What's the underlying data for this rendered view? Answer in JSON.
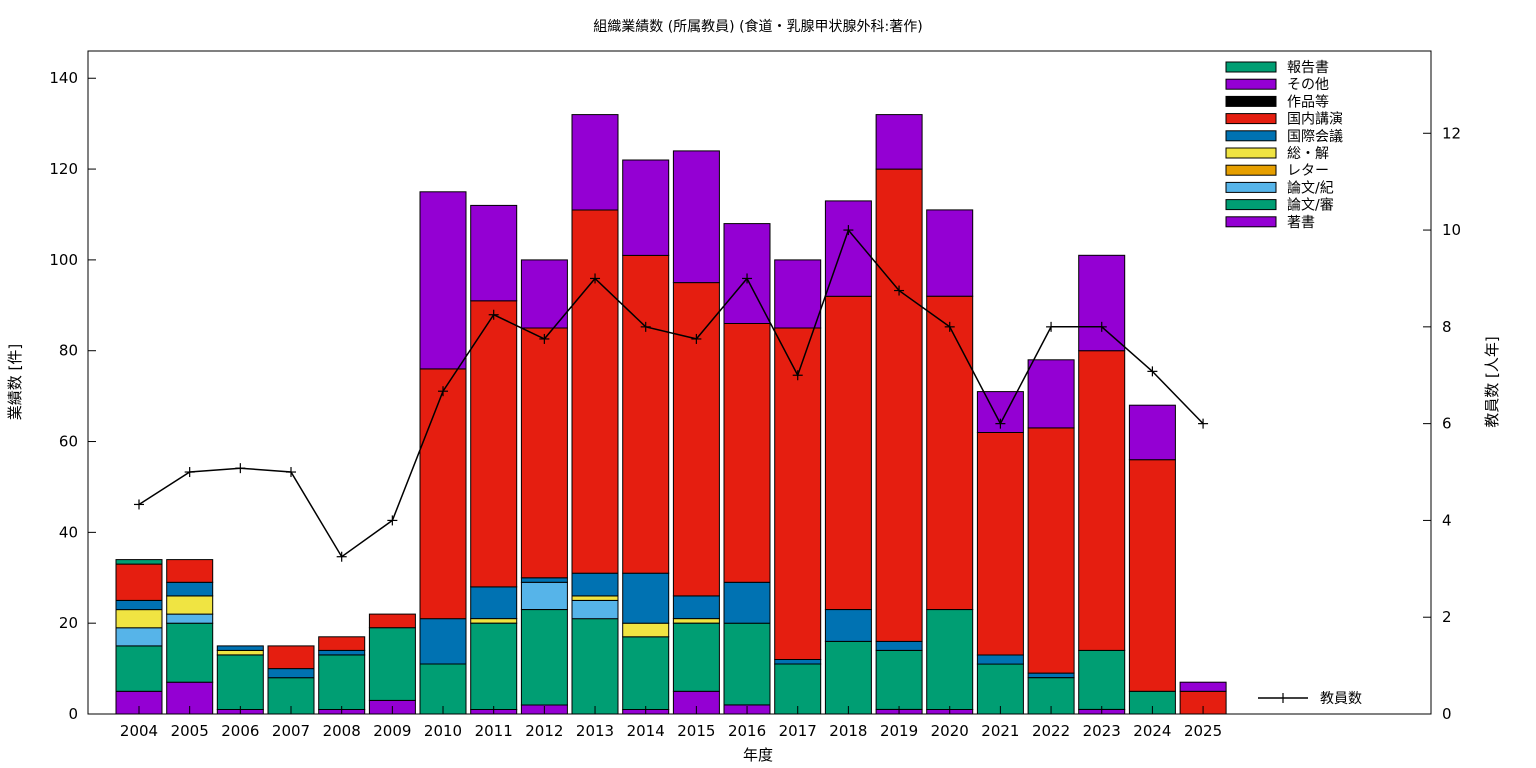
{
  "chart_data": {
    "type": "bar",
    "stacked": true,
    "title": "組織業績数 (所属教員) (食道・乳腺甲状腺外科:著作)",
    "xlabel": "年度",
    "ylabel": "業績数 [件]",
    "y2label": "教員数 [人年]",
    "ylim": [
      0,
      146
    ],
    "y2lim": [
      0,
      13.7
    ],
    "yticks": [
      0,
      20,
      40,
      60,
      80,
      100,
      120,
      140
    ],
    "y2ticks": [
      0,
      2,
      4,
      6,
      8,
      10,
      12
    ],
    "grid": false,
    "legend_position": "top-right",
    "categories": [
      "2004",
      "2005",
      "2006",
      "2007",
      "2008",
      "2009",
      "2010",
      "2011",
      "2012",
      "2013",
      "2014",
      "2015",
      "2016",
      "2017",
      "2018",
      "2019",
      "2020",
      "2021",
      "2022",
      "2023",
      "2024",
      "2025"
    ],
    "series": [
      {
        "name": "著書",
        "color": "#9400d3",
        "values": [
          5,
          7,
          1,
          0,
          1,
          3,
          0,
          1,
          2,
          0,
          1,
          5,
          2,
          0,
          0,
          1,
          1,
          0,
          0,
          1,
          0,
          0
        ]
      },
      {
        "name": "論文/審",
        "color": "#009e73",
        "values": [
          10,
          13,
          12,
          8,
          12,
          16,
          11,
          19,
          21,
          21,
          16,
          15,
          18,
          11,
          16,
          13,
          22,
          11,
          8,
          13,
          5,
          0
        ]
      },
      {
        "name": "論文/紀",
        "color": "#56b4e9",
        "values": [
          4,
          2,
          0,
          0,
          0,
          0,
          0,
          0,
          6,
          4,
          0,
          0,
          0,
          0,
          0,
          0,
          0,
          0,
          0,
          0,
          0,
          0
        ]
      },
      {
        "name": "レター",
        "color": "#e69f00",
        "values": [
          0,
          0,
          0,
          0,
          0,
          0,
          0,
          0,
          0,
          0,
          0,
          0,
          0,
          0,
          0,
          0,
          0,
          0,
          0,
          0,
          0,
          0
        ]
      },
      {
        "name": "総・解",
        "color": "#f0e442",
        "values": [
          4,
          4,
          1,
          0,
          0,
          0,
          0,
          1,
          0,
          1,
          3,
          1,
          0,
          0,
          0,
          0,
          0,
          0,
          0,
          0,
          0,
          0
        ]
      },
      {
        "name": "国際会議",
        "color": "#0072b2",
        "values": [
          2,
          3,
          1,
          2,
          1,
          0,
          10,
          7,
          1,
          5,
          11,
          5,
          9,
          1,
          7,
          2,
          0,
          2,
          1,
          0,
          0,
          0
        ]
      },
      {
        "name": "国内講演",
        "color": "#e51e10",
        "values": [
          8,
          5,
          0,
          5,
          3,
          3,
          55,
          63,
          55,
          80,
          70,
          69,
          57,
          73,
          69,
          104,
          69,
          49,
          54,
          66,
          51,
          5
        ]
      },
      {
        "name": "作品等",
        "color": "#000000",
        "values": [
          0,
          0,
          0,
          0,
          0,
          0,
          0,
          0,
          0,
          0,
          0,
          0,
          0,
          0,
          0,
          0,
          0,
          0,
          0,
          0,
          0,
          0
        ]
      },
      {
        "name": "その他",
        "color": "#9400d3",
        "values": [
          0,
          0,
          0,
          0,
          0,
          0,
          39,
          21,
          15,
          21,
          21,
          29,
          22,
          15,
          21,
          12,
          19,
          9,
          15,
          21,
          12,
          2
        ]
      },
      {
        "name": "報告書",
        "color": "#009e73",
        "values": [
          1,
          0,
          0,
          0,
          0,
          0,
          0,
          0,
          0,
          0,
          0,
          0,
          0,
          0,
          0,
          0,
          0,
          0,
          0,
          0,
          0,
          0
        ]
      }
    ],
    "line_series": {
      "name": "教員数",
      "axis": "y2",
      "color": "#000000",
      "values": [
        4.33,
        5.0,
        5.08,
        5.0,
        3.25,
        4.0,
        6.67,
        8.25,
        7.75,
        9.0,
        8.0,
        7.75,
        9.0,
        7.0,
        10.0,
        8.75,
        8.0,
        6.0,
        8.0,
        8.0,
        7.08,
        6.0
      ]
    }
  }
}
